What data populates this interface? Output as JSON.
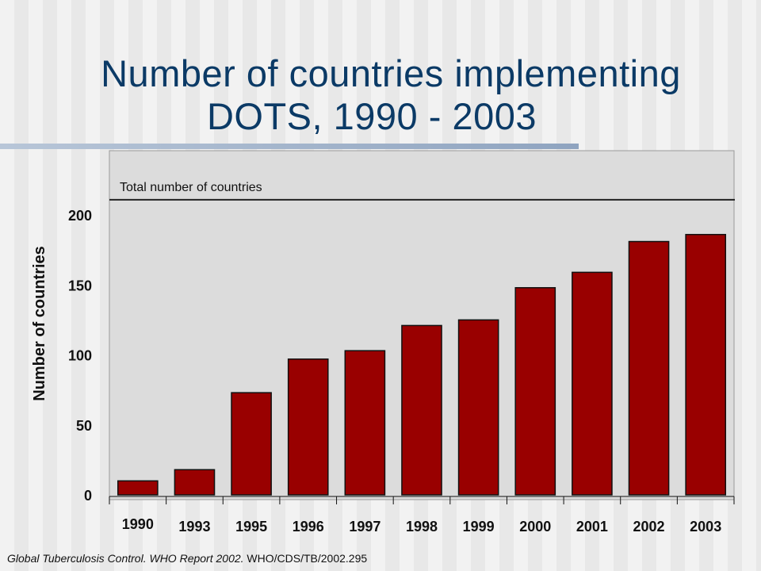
{
  "title_line1": "Number of countries implementing",
  "title_line2": "DOTS, 1990 - 2003",
  "source": {
    "italic": "Global Tuberculosis Control. WHO Report 2002.",
    "plain": " WHO/CDS/TB/2002.295"
  },
  "colors": {
    "title": "#0b3a66",
    "bar": "#990000",
    "plot_background": "#dcdcdc"
  },
  "chart_data": {
    "type": "bar",
    "title": "Number of countries implementing DOTS, 1990 - 2003",
    "xlabel": "",
    "ylabel": "Number of countries",
    "categories": [
      "1990",
      "1993",
      "1995",
      "1996",
      "1997",
      "1998",
      "1999",
      "2000",
      "2001",
      "2002",
      "2003"
    ],
    "values": [
      10,
      18,
      73,
      97,
      103,
      121,
      125,
      148,
      159,
      181,
      186
    ],
    "ylim": [
      0,
      200
    ],
    "yticks": [
      0,
      50,
      100,
      150,
      200
    ],
    "reference_line": {
      "label": "Total number of countries",
      "value": 212
    },
    "grid": false,
    "legend": "none"
  }
}
